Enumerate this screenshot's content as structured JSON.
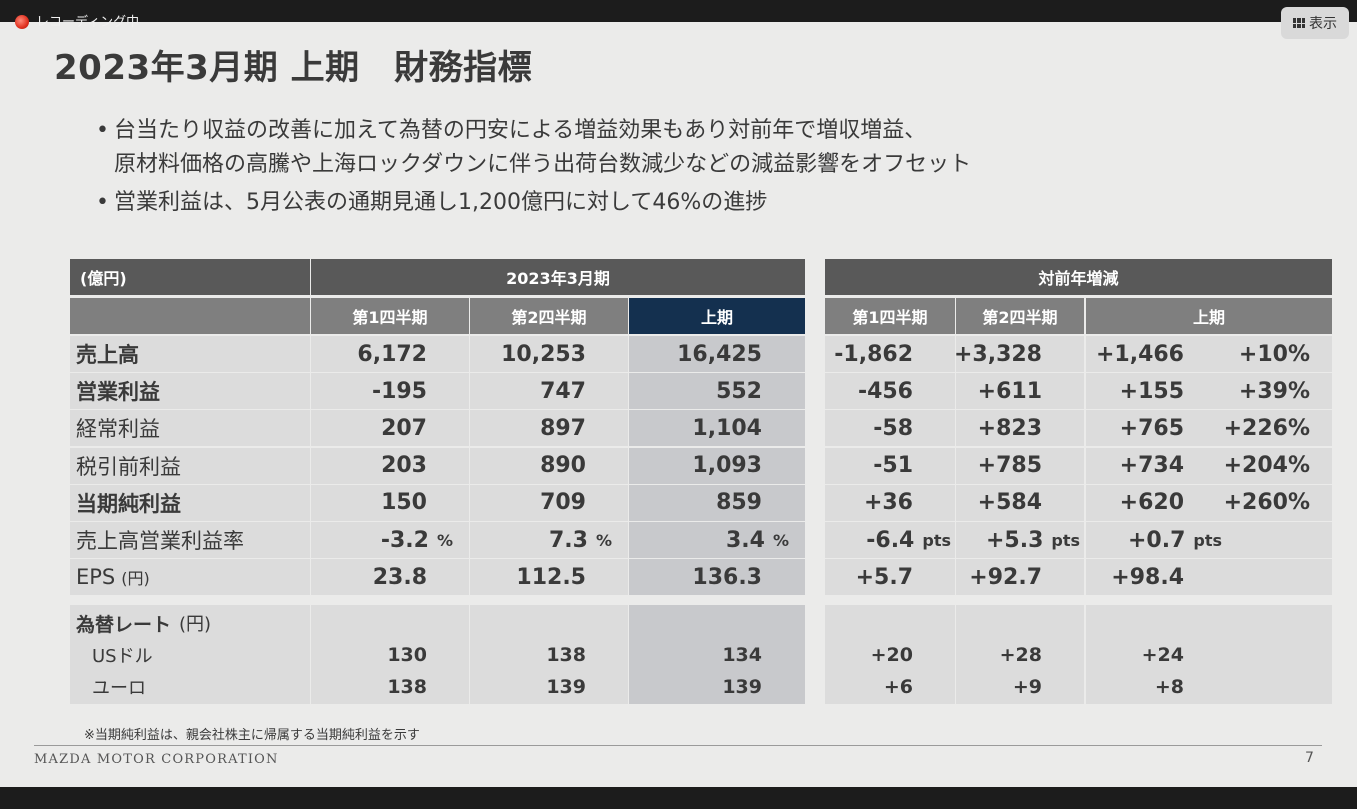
{
  "overlay": {
    "recording_label": "レコーディング中",
    "view_button": "表示"
  },
  "title": "2023年3月期 上期　財務指標",
  "bullets": [
    "台当たり収益の改善に加えて為替の円安による増益効果もあり対前年で増収増益、\n原材料価格の高騰や上海ロックダウンに伴う出荷台数減少などの減益影響をオフセット",
    "営業利益は、5月公表の通期見通し1,200億円に対して46%の進捗"
  ],
  "table": {
    "unit_label": "(億円)",
    "group_fy": "2023年3月期",
    "group_yoy": "対前年増減",
    "col_q1": "第1四半期",
    "col_q2": "第2四半期",
    "col_h1": "上期",
    "rows": [
      {
        "label": "売上高",
        "q1": "6,172",
        "q2": "10,253",
        "h1": "16,425",
        "dq1": "-1,862",
        "dq2": "+3,328",
        "dh1": "+1,466",
        "dpct": "+10%"
      },
      {
        "label": "営業利益",
        "q1": "-195",
        "q2": "747",
        "h1": "552",
        "dq1": "-456",
        "dq2": "+611",
        "dh1": "+155",
        "dpct": "+39%"
      },
      {
        "label": "経常利益",
        "q1": "207",
        "q2": "897",
        "h1": "1,104",
        "dq1": "-58",
        "dq2": "+823",
        "dh1": "+765",
        "dpct": "+226%"
      },
      {
        "label": "税引前利益",
        "q1": "203",
        "q2": "890",
        "h1": "1,093",
        "dq1": "-51",
        "dq2": "+785",
        "dh1": "+734",
        "dpct": "+204%"
      },
      {
        "label": "当期純利益",
        "q1": "150",
        "q2": "709",
        "h1": "859",
        "dq1": "+36",
        "dq2": "+584",
        "dh1": "+620",
        "dpct": "+260%"
      }
    ],
    "margin_row": {
      "label": "売上高営業利益率",
      "q1": "-3.2",
      "q2": "7.3",
      "h1": "3.4",
      "unit": "%",
      "dq1": "-6.4",
      "dq2": "+5.3",
      "dh1": "+0.7",
      "dunit": "pts"
    },
    "eps_row": {
      "label": "EPS",
      "label_unit": "(円)",
      "q1": "23.8",
      "q2": "112.5",
      "h1": "136.3",
      "dq1": "+5.7",
      "dq2": "+92.7",
      "dh1": "+98.4"
    },
    "fx": {
      "label": "為替レート",
      "label_unit": "(円)",
      "rows": [
        {
          "label": "USドル",
          "q1": "130",
          "q2": "138",
          "h1": "134",
          "dq1": "+20",
          "dq2": "+28",
          "dh1": "+24"
        },
        {
          "label": "ユーロ",
          "q1": "138",
          "q2": "139",
          "h1": "139",
          "dq1": "+6",
          "dq2": "+9",
          "dh1": "+8"
        }
      ]
    }
  },
  "footnote": "※当期純利益は、親会社株主に帰属する当期純利益を示す",
  "footer": {
    "company": "MAZDA MOTOR CORPORATION",
    "page": "7"
  }
}
